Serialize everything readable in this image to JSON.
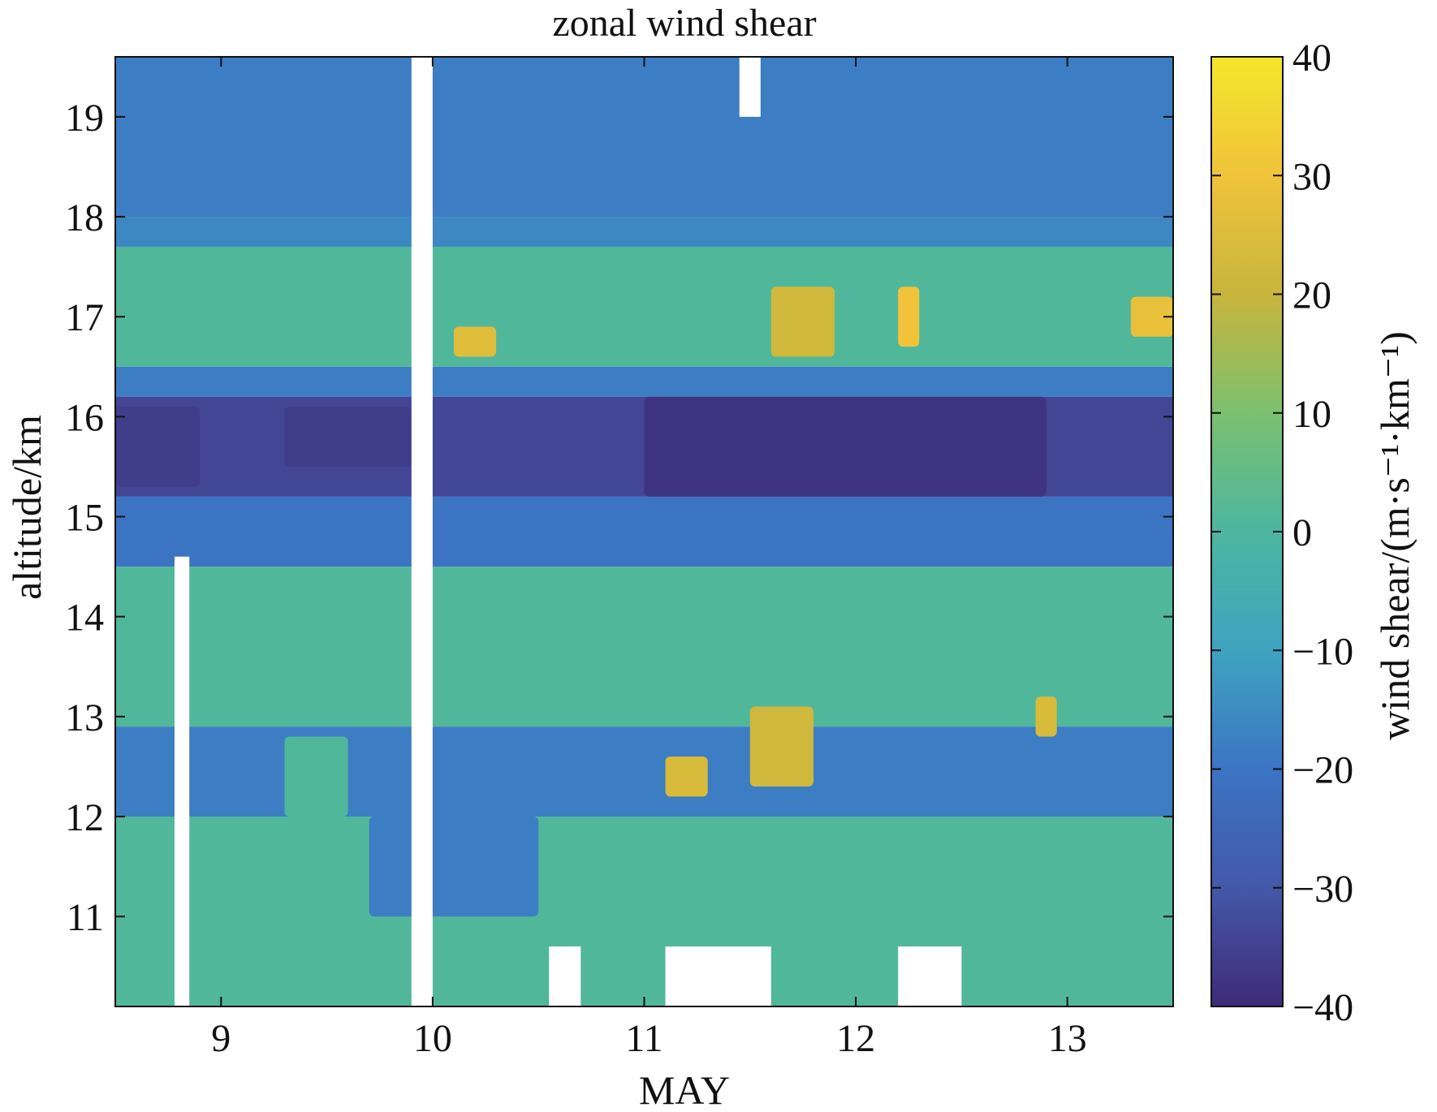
{
  "chart_data": {
    "type": "heatmap",
    "title": "zonal wind shear",
    "xlabel": "MAY",
    "ylabel": "altitude/km",
    "colorbar_label": "wind shear/(m·s⁻¹·km⁻¹)",
    "xlim": [
      8.5,
      13.5
    ],
    "ylim": [
      10.1,
      19.6
    ],
    "clim": [
      -40,
      40
    ],
    "x_ticks": [
      9,
      10,
      11,
      12,
      13
    ],
    "y_ticks": [
      11,
      12,
      13,
      14,
      15,
      16,
      17,
      18,
      19
    ],
    "colorbar_ticks": [
      40,
      30,
      20,
      10,
      0,
      -10,
      -20,
      -30,
      -40
    ],
    "colormap": [
      "#3e2b78",
      "#4458a8",
      "#3c74c4",
      "#3fa3c0",
      "#4cb6a0",
      "#7cc06f",
      "#c8b53c",
      "#f0c33a",
      "#f4e72b"
    ],
    "bands": [
      {
        "y": [
          18.0,
          19.6
        ],
        "shear": -18
      },
      {
        "y": [
          17.7,
          18.0
        ],
        "shear": -16
      },
      {
        "y": [
          16.5,
          17.7
        ],
        "shear": 1
      },
      {
        "y": [
          16.2,
          16.5
        ],
        "shear": -18
      },
      {
        "y": [
          15.2,
          16.2
        ],
        "shear": -34
      },
      {
        "y": [
          14.5,
          15.2
        ],
        "shear": -20
      },
      {
        "y": [
          12.9,
          14.5
        ],
        "shear": 1
      },
      {
        "y": [
          12.0,
          12.9
        ],
        "shear": -18
      },
      {
        "y": [
          10.1,
          12.0
        ],
        "shear": 1
      }
    ],
    "patches": [
      {
        "x": [
          11.6,
          11.9
        ],
        "y": [
          16.6,
          17.3
        ],
        "shear": 22
      },
      {
        "x": [
          11.0,
          12.9
        ],
        "y": [
          15.2,
          16.2
        ],
        "shear": -38
      },
      {
        "x": [
          9.3,
          9.9
        ],
        "y": [
          15.5,
          16.1
        ],
        "shear": -36
      },
      {
        "x": [
          8.5,
          8.9
        ],
        "y": [
          15.3,
          16.1
        ],
        "shear": -36
      },
      {
        "x": [
          11.5,
          11.8
        ],
        "y": [
          12.3,
          13.1
        ],
        "shear": 22
      },
      {
        "x": [
          11.1,
          11.3
        ],
        "y": [
          12.2,
          12.6
        ],
        "shear": 24
      },
      {
        "x": [
          12.2,
          12.3
        ],
        "y": [
          16.7,
          17.3
        ],
        "shear": 30
      },
      {
        "x": [
          10.1,
          10.3
        ],
        "y": [
          16.6,
          16.9
        ],
        "shear": 26
      },
      {
        "x": [
          13.3,
          13.5
        ],
        "y": [
          16.8,
          17.2
        ],
        "shear": 28
      },
      {
        "x": [
          12.85,
          12.95
        ],
        "y": [
          12.8,
          13.2
        ],
        "shear": 24
      },
      {
        "x": [
          9.7,
          10.5
        ],
        "y": [
          11.0,
          12.0
        ],
        "shear": -18
      },
      {
        "x": [
          9.3,
          9.6
        ],
        "y": [
          12.0,
          12.8
        ],
        "shear": 1
      }
    ],
    "missing": [
      {
        "x": [
          9.9,
          10.0
        ],
        "y": [
          10.1,
          19.6
        ]
      },
      {
        "x": [
          8.78,
          8.85
        ],
        "y": [
          10.1,
          14.6
        ]
      },
      {
        "x": [
          11.1,
          11.6
        ],
        "y": [
          10.1,
          10.7
        ]
      },
      {
        "x": [
          12.2,
          12.5
        ],
        "y": [
          10.1,
          10.7
        ]
      },
      {
        "x": [
          11.45,
          11.55
        ],
        "y": [
          19.0,
          19.6
        ]
      },
      {
        "x": [
          10.55,
          10.7
        ],
        "y": [
          10.1,
          10.7
        ]
      }
    ]
  }
}
